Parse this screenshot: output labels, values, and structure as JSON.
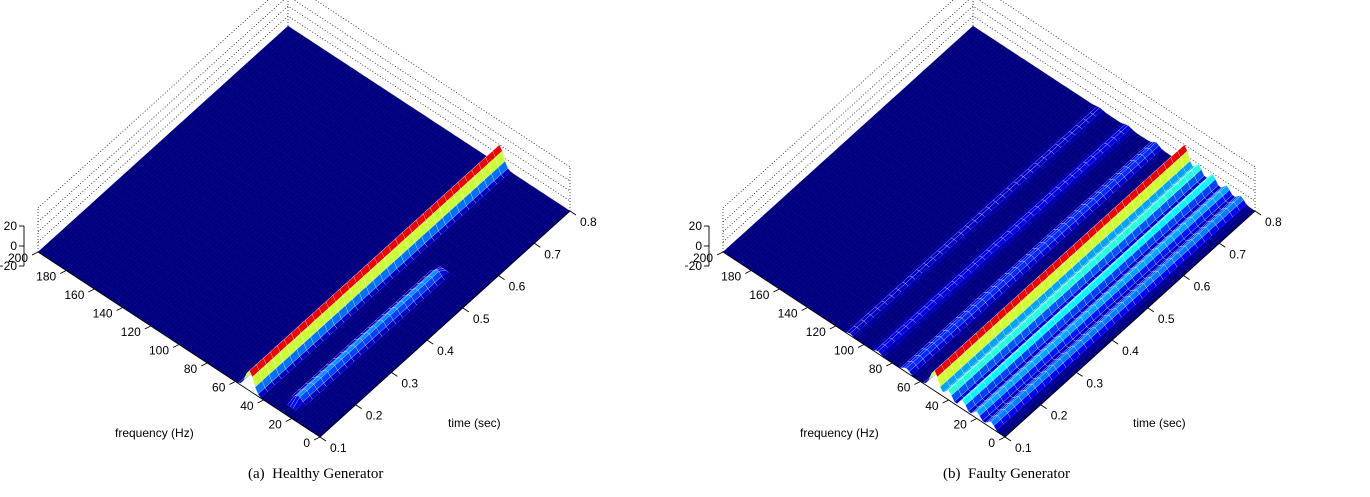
{
  "chart_data": [
    {
      "type": "surface",
      "caption_label": "(a)",
      "caption": "Healthy Generator",
      "xlabel": "frequency (Hz)",
      "ylabel": "time (sec)",
      "zlabel": "",
      "xlim": [
        0,
        200
      ],
      "ylim": [
        0.1,
        0.8
      ],
      "zlim": [
        -20,
        20
      ],
      "x_ticks": [
        "0",
        "20",
        "40",
        "60",
        "80",
        "100",
        "120",
        "140",
        "160",
        "180",
        "200"
      ],
      "y_ticks": [
        "0.1",
        "0.2",
        "0.3",
        "0.4",
        "0.5",
        "0.6",
        "0.7",
        "0.8"
      ],
      "z_ticks": [
        "20",
        "0",
        "−20"
      ],
      "colormap": "jet",
      "grid": true,
      "ridges": [
        {
          "frequency_hz": 50,
          "level": 1.0,
          "t_start": 0.1,
          "t_end": 0.8
        },
        {
          "frequency_hz": 25,
          "level": 0.3,
          "t_start": 0.15,
          "t_end": 0.5
        }
      ]
    },
    {
      "type": "surface",
      "caption_label": "(b)",
      "caption": "Faulty Generator",
      "xlabel": "frequency (Hz)",
      "ylabel": "time (sec)",
      "zlabel": "",
      "xlim": [
        0,
        200
      ],
      "ylim": [
        0.1,
        0.8
      ],
      "zlim": [
        -20,
        20
      ],
      "x_ticks": [
        "0",
        "20",
        "40",
        "60",
        "80",
        "100",
        "120",
        "140",
        "160",
        "180",
        "200"
      ],
      "y_ticks": [
        "0.1",
        "0.2",
        "0.3",
        "0.4",
        "0.5",
        "0.6",
        "0.7",
        "0.8"
      ],
      "z_ticks": [
        "20",
        "0",
        "−20"
      ],
      "colormap": "jet",
      "grid": true,
      "ridges": [
        {
          "frequency_hz": 50,
          "level": 1.0,
          "t_start": 0.1,
          "t_end": 0.8
        },
        {
          "frequency_hz": 40,
          "level": 0.5,
          "t_start": 0.1,
          "t_end": 0.8
        },
        {
          "frequency_hz": 30,
          "level": 0.45,
          "t_start": 0.1,
          "t_end": 0.8
        },
        {
          "frequency_hz": 20,
          "level": 0.35,
          "t_start": 0.1,
          "t_end": 0.8
        },
        {
          "frequency_hz": 10,
          "level": 0.3,
          "t_start": 0.1,
          "t_end": 0.8
        },
        {
          "frequency_hz": 70,
          "level": 0.2,
          "t_start": 0.1,
          "t_end": 0.8
        },
        {
          "frequency_hz": 90,
          "level": 0.12,
          "t_start": 0.1,
          "t_end": 0.8
        },
        {
          "frequency_hz": 110,
          "level": 0.08,
          "t_start": 0.1,
          "t_end": 0.8
        }
      ]
    }
  ]
}
